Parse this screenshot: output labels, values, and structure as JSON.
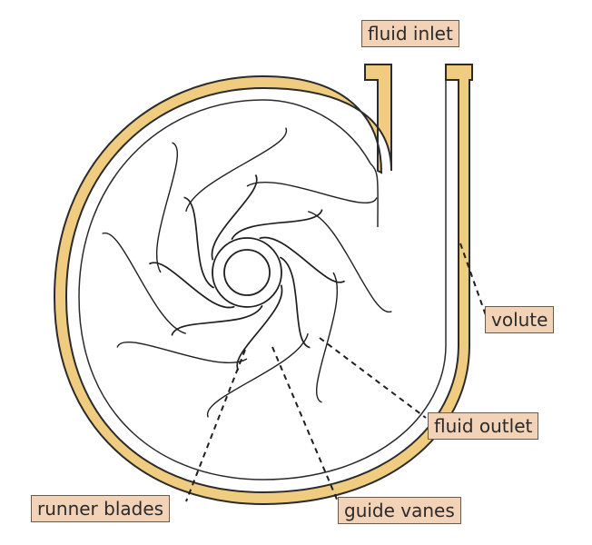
{
  "labels": {
    "fluid_inlet": "fluid inlet",
    "volute": "volute",
    "fluid_outlet": "fluid outlet",
    "runner_blades": "runner blades",
    "guide_vanes": "guide vanes"
  },
  "colors": {
    "casing_fill": "#f0cc80",
    "casing_stroke": "#2b2b2b",
    "blade_stroke": "#1f1f1f",
    "label_fill": "#f2d3b8",
    "label_border": "#6d5a48"
  },
  "counts": {
    "runner_blades": 8,
    "guide_vanes": 8
  }
}
